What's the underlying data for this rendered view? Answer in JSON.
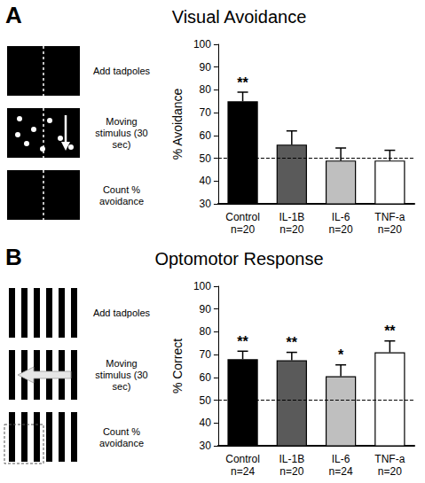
{
  "panels": [
    {
      "letter": "A",
      "title": "Visual Avoidance",
      "steps": [
        "Add tadpoles",
        "Moving stimulus (30 sec)",
        "Count % avoidance"
      ]
    },
    {
      "letter": "B",
      "title": "Optomotor Response",
      "steps": [
        "Add tadpoles",
        "Moving stimulus (30 sec)",
        "Count % avoidance"
      ]
    }
  ],
  "chart_data": [
    {
      "type": "bar",
      "y_label": "% Avoidance",
      "categories": [
        "Control",
        "IL-1B",
        "IL-6",
        "TNF-a"
      ],
      "n_labels": [
        "n=20",
        "n=20",
        "n=20",
        "n=20"
      ],
      "values": [
        75,
        56,
        49,
        49
      ],
      "errors": [
        4,
        6,
        5.5,
        4.5
      ],
      "significance": [
        "**",
        null,
        null,
        null
      ],
      "colors": [
        "#000000",
        "#5a5a5a",
        "#bfbfbf",
        "#ffffff"
      ],
      "reference_line": 50,
      "ylim": [
        30,
        100
      ],
      "yticks": [
        30,
        40,
        50,
        60,
        70,
        80,
        90,
        100
      ],
      "grid": false
    },
    {
      "type": "bar",
      "y_label": "% Correct",
      "categories": [
        "Control",
        "IL-1B",
        "IL-6",
        "TNF-a"
      ],
      "n_labels": [
        "n=24",
        "n=20",
        "n=24",
        "n=20"
      ],
      "values": [
        68,
        67.5,
        60.5,
        71
      ],
      "errors": [
        3.5,
        3.5,
        5,
        5
      ],
      "significance": [
        "**",
        "**",
        "*",
        "**"
      ],
      "colors": [
        "#000000",
        "#5a5a5a",
        "#bfbfbf",
        "#ffffff"
      ],
      "reference_line": 50,
      "ylim": [
        30,
        100
      ],
      "yticks": [
        30,
        40,
        50,
        60,
        70,
        80,
        90,
        100
      ],
      "grid": false
    }
  ]
}
